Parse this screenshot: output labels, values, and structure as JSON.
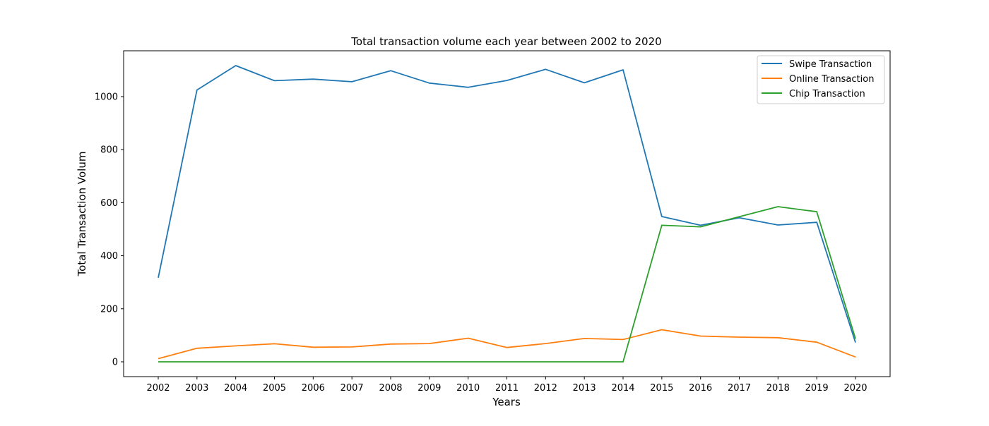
{
  "chart_data": {
    "type": "line",
    "title": "Total transaction volume each year between 2002 to 2020",
    "xlabel": "Years",
    "ylabel": "Total Transaction Volum",
    "categories": [
      "2002",
      "2003",
      "2004",
      "2005",
      "2006",
      "2007",
      "2008",
      "2009",
      "2010",
      "2011",
      "2012",
      "2013",
      "2014",
      "2015",
      "2016",
      "2017",
      "2018",
      "2019",
      "2020"
    ],
    "ylim": [
      -60,
      1175
    ],
    "yticks": [
      0,
      200,
      400,
      600,
      800,
      1000
    ],
    "grid": false,
    "legend_position": "top-right",
    "series": [
      {
        "name": "Swipe Transaction",
        "color": "#1f77b4",
        "values": [
          317,
          1025,
          1117,
          1060,
          1066,
          1056,
          1098,
          1051,
          1035,
          1061,
          1103,
          1052,
          1101,
          548,
          515,
          543,
          516,
          526,
          73
        ]
      },
      {
        "name": "Online Transaction",
        "color": "#ff7f0e",
        "values": [
          12,
          51,
          60,
          68,
          55,
          56,
          67,
          69,
          89,
          54,
          69,
          88,
          84,
          121,
          97,
          93,
          91,
          74,
          18
        ]
      },
      {
        "name": "Chip Transaction",
        "color": "#2ca02c",
        "values": [
          0,
          0,
          0,
          0,
          0,
          0,
          0,
          0,
          0,
          0,
          0,
          0,
          0,
          515,
          509,
          547,
          585,
          566,
          87
        ]
      }
    ]
  }
}
